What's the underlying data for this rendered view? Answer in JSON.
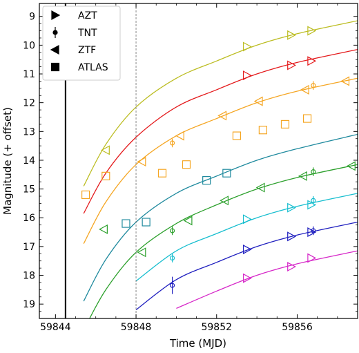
{
  "chart_data": {
    "type": "scatter",
    "xlabel": "Time (MJD)",
    "ylabel": "Magnitude (+ offset)",
    "xlim": [
      59843.2,
      59859.0
    ],
    "ylim": [
      19.5,
      8.55
    ],
    "y_inverted": true,
    "xticks": [
      59844,
      59848,
      59852,
      59856
    ],
    "yticks": [
      9,
      10,
      11,
      12,
      13,
      14,
      15,
      16,
      17,
      18,
      19
    ],
    "legend": {
      "position": "top-left",
      "entries": [
        {
          "label": "AZT",
          "marker": "triangle-right"
        },
        {
          "label": "TNT",
          "marker": "circle-errorbar"
        },
        {
          "label": "ZTF",
          "marker": "triangle-left"
        },
        {
          "label": "ATLAS",
          "marker": "square"
        }
      ]
    },
    "vertical_lines": [
      {
        "x": 59844.5,
        "style": "solid",
        "color": "#000000"
      },
      {
        "x": 59848.0,
        "style": "dashed",
        "color": "#888888"
      }
    ],
    "series": [
      {
        "color": "#bcbd22",
        "curve": [
          [
            59845.4,
            14.9
          ],
          [
            59846.5,
            13.45
          ],
          [
            59848,
            12.15
          ],
          [
            59850,
            11.15
          ],
          [
            59852,
            10.55
          ],
          [
            59854,
            10.0
          ],
          [
            59856,
            9.6
          ],
          [
            59859,
            9.15
          ]
        ],
        "points": [
          {
            "x": 59846.5,
            "y": 13.65,
            "marker": "triangle-left"
          },
          {
            "x": 59853.5,
            "y": 10.05,
            "marker": "triangle-right"
          },
          {
            "x": 59855.7,
            "y": 9.65,
            "marker": "triangle-right"
          },
          {
            "x": 59856.7,
            "y": 9.5,
            "marker": "triangle-right"
          }
        ]
      },
      {
        "color": "#e41a1c",
        "curve": [
          [
            59845.4,
            15.85
          ],
          [
            59846.5,
            14.45
          ],
          [
            59848,
            13.2
          ],
          [
            59850,
            12.15
          ],
          [
            59852,
            11.55
          ],
          [
            59854,
            11.0
          ],
          [
            59856,
            10.6
          ],
          [
            59859,
            10.15
          ]
        ],
        "points": [
          {
            "x": 59853.5,
            "y": 11.05,
            "marker": "triangle-right"
          },
          {
            "x": 59855.7,
            "y": 10.7,
            "marker": "triangle-right"
          },
          {
            "x": 59856.7,
            "y": 10.55,
            "marker": "triangle-right"
          }
        ]
      },
      {
        "color": "#f5a623",
        "curve": [
          [
            59845.4,
            16.9
          ],
          [
            59846.5,
            15.45
          ],
          [
            59848,
            14.15
          ],
          [
            59850,
            13.15
          ],
          [
            59852,
            12.55
          ],
          [
            59854,
            12.0
          ],
          [
            59856,
            11.6
          ],
          [
            59859,
            11.15
          ]
        ],
        "points": [
          {
            "x": 59845.5,
            "y": 15.2,
            "marker": "square"
          },
          {
            "x": 59846.5,
            "y": 14.55,
            "marker": "square"
          },
          {
            "x": 59848.3,
            "y": 14.05,
            "marker": "triangle-left"
          },
          {
            "x": 59849.8,
            "y": 13.4,
            "marker": "circle",
            "err": 0.15
          },
          {
            "x": 59850.2,
            "y": 13.15,
            "marker": "triangle-left"
          },
          {
            "x": 59849.3,
            "y": 14.45,
            "marker": "square"
          },
          {
            "x": 59850.5,
            "y": 14.15,
            "marker": "square"
          },
          {
            "x": 59852.3,
            "y": 12.45,
            "marker": "triangle-left"
          },
          {
            "x": 59853.0,
            "y": 13.15,
            "marker": "square"
          },
          {
            "x": 59854.1,
            "y": 11.95,
            "marker": "triangle-left"
          },
          {
            "x": 59854.3,
            "y": 12.95,
            "marker": "square"
          },
          {
            "x": 59855.4,
            "y": 12.75,
            "marker": "square"
          },
          {
            "x": 59856.4,
            "y": 11.55,
            "marker": "triangle-left"
          },
          {
            "x": 59856.5,
            "y": 12.55,
            "marker": "square"
          },
          {
            "x": 59856.8,
            "y": 11.4,
            "marker": "circle",
            "err": 0.15
          },
          {
            "x": 59858.4,
            "y": 11.25,
            "marker": "triangle-left"
          }
        ]
      },
      {
        "color": "#1f8a9e",
        "curve": [
          [
            59845.4,
            18.9
          ],
          [
            59846.5,
            17.45
          ],
          [
            59848,
            16.15
          ],
          [
            59850,
            15.15
          ],
          [
            59852,
            14.55
          ],
          [
            59854,
            14.0
          ],
          [
            59856,
            13.6
          ],
          [
            59859,
            13.1
          ]
        ],
        "points": [
          {
            "x": 59847.5,
            "y": 16.2,
            "marker": "square"
          },
          {
            "x": 59848.5,
            "y": 16.15,
            "marker": "square"
          },
          {
            "x": 59851.5,
            "y": 14.7,
            "marker": "square"
          },
          {
            "x": 59852.5,
            "y": 14.45,
            "marker": "square"
          }
        ]
      },
      {
        "color": "#2ca02c",
        "curve": [
          [
            59845.4,
            19.9
          ],
          [
            59846.5,
            18.5
          ],
          [
            59848,
            17.2
          ],
          [
            59850,
            16.2
          ],
          [
            59852,
            15.55
          ],
          [
            59854,
            15.0
          ],
          [
            59856,
            14.6
          ],
          [
            59859,
            14.15
          ]
        ],
        "points": [
          {
            "x": 59846.4,
            "y": 16.4,
            "marker": "triangle-left"
          },
          {
            "x": 59848.3,
            "y": 17.2,
            "marker": "triangle-left"
          },
          {
            "x": 59849.8,
            "y": 16.45,
            "marker": "circle",
            "err": 0.15
          },
          {
            "x": 59850.6,
            "y": 16.1,
            "marker": "triangle-left"
          },
          {
            "x": 59852.4,
            "y": 15.4,
            "marker": "triangle-left"
          },
          {
            "x": 59854.2,
            "y": 14.95,
            "marker": "triangle-left"
          },
          {
            "x": 59856.3,
            "y": 14.55,
            "marker": "triangle-left"
          },
          {
            "x": 59856.8,
            "y": 14.4,
            "marker": "circle",
            "err": 0.15
          },
          {
            "x": 59858.7,
            "y": 14.2,
            "marker": "triangle-left"
          }
        ]
      },
      {
        "color": "#17becf",
        "curve": [
          [
            59848,
            18.2
          ],
          [
            59850,
            17.15
          ],
          [
            59852,
            16.55
          ],
          [
            59854,
            16.0
          ],
          [
            59856,
            15.6
          ],
          [
            59859,
            15.15
          ]
        ],
        "points": [
          {
            "x": 59849.8,
            "y": 17.4,
            "marker": "circle",
            "err": 0.15
          },
          {
            "x": 59853.5,
            "y": 16.05,
            "marker": "triangle-right"
          },
          {
            "x": 59855.7,
            "y": 15.65,
            "marker": "triangle-right"
          },
          {
            "x": 59856.7,
            "y": 15.55,
            "marker": "triangle-right"
          },
          {
            "x": 59856.8,
            "y": 15.4,
            "marker": "circle",
            "err": 0.15
          }
        ]
      },
      {
        "color": "#1f1fbf",
        "curve": [
          [
            59848,
            19.2
          ],
          [
            59850,
            18.15
          ],
          [
            59852,
            17.55
          ],
          [
            59854,
            17.0
          ],
          [
            59856,
            16.6
          ],
          [
            59859,
            16.15
          ]
        ],
        "points": [
          {
            "x": 59849.8,
            "y": 18.35,
            "marker": "circle",
            "err": 0.3
          },
          {
            "x": 59853.5,
            "y": 17.1,
            "marker": "triangle-right"
          },
          {
            "x": 59855.7,
            "y": 16.65,
            "marker": "triangle-right"
          },
          {
            "x": 59856.7,
            "y": 16.5,
            "marker": "triangle-right"
          },
          {
            "x": 59856.8,
            "y": 16.45,
            "marker": "circle",
            "err": 0.15
          }
        ]
      },
      {
        "color": "#d627c8",
        "curve": [
          [
            59850,
            19.15
          ],
          [
            59852,
            18.55
          ],
          [
            59854,
            18.0
          ],
          [
            59856,
            17.6
          ],
          [
            59859,
            17.15
          ]
        ],
        "points": [
          {
            "x": 59853.5,
            "y": 18.1,
            "marker": "triangle-right"
          },
          {
            "x": 59855.7,
            "y": 17.7,
            "marker": "triangle-right"
          },
          {
            "x": 59856.7,
            "y": 17.4,
            "marker": "triangle-right"
          }
        ]
      }
    ]
  }
}
